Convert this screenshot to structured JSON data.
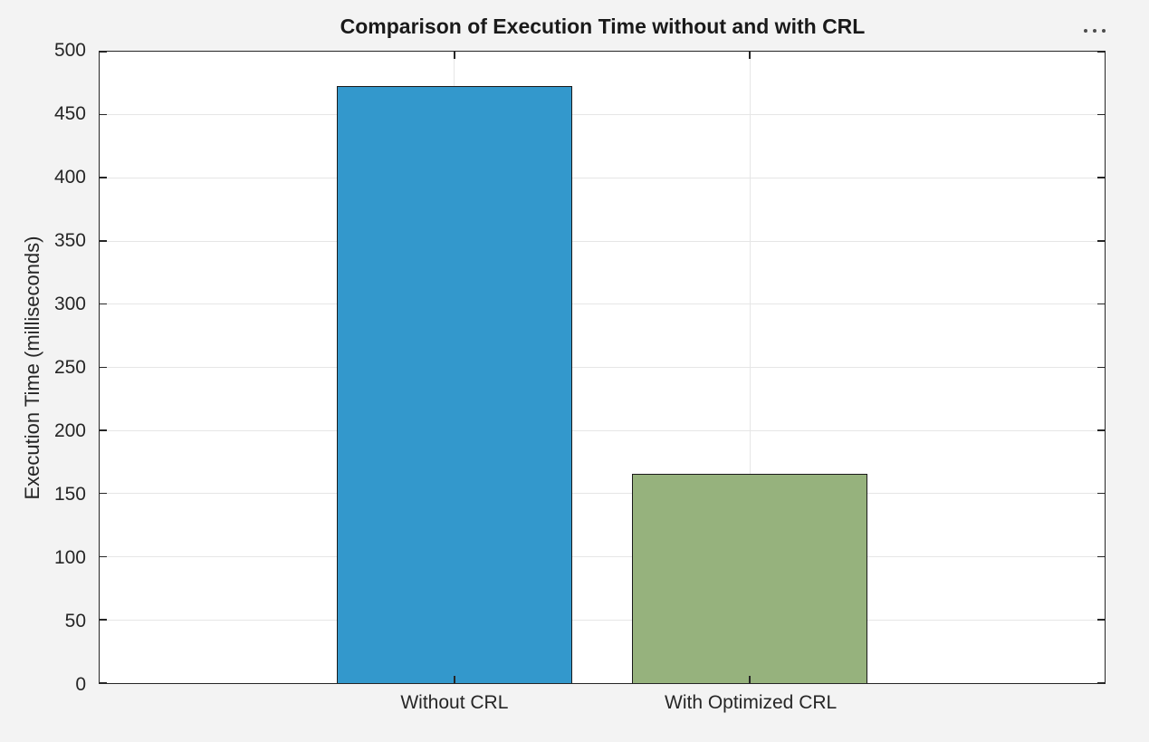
{
  "figure": {
    "background": "#f3f3f3"
  },
  "toolbar": {
    "options_icon": "ellipsis-horizontal-icon"
  },
  "chart_data": {
    "type": "bar",
    "title": "Comparison of Execution Time without and with CRL",
    "xlabel": "",
    "ylabel": "Execution Time (milliseconds)",
    "categories": [
      "Without CRL",
      "With Optimized CRL"
    ],
    "values": [
      473,
      166
    ],
    "ylim": [
      0,
      500
    ],
    "ytick_step": 50,
    "yticks": [
      0,
      50,
      100,
      150,
      200,
      250,
      300,
      350,
      400,
      450,
      500
    ],
    "grid": true,
    "legend": "none",
    "bar_colors": [
      "#3398cc",
      "#96b27d"
    ],
    "bar_edge_color": "#1a1a1a",
    "axis_color": "#262626",
    "grid_color": "#e6e6e6",
    "plot_background": "#ffffff"
  }
}
